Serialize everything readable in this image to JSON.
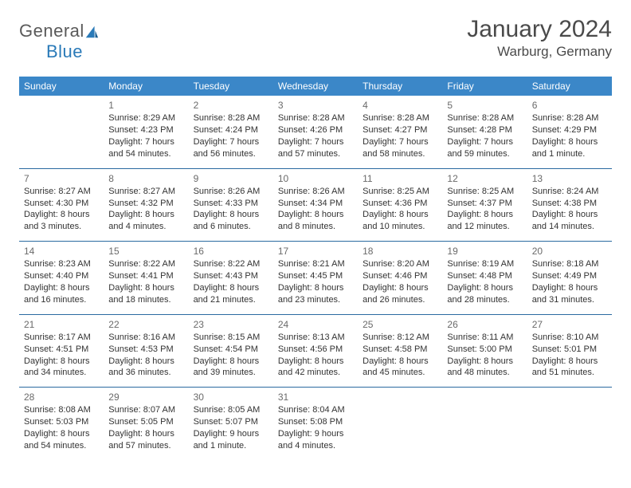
{
  "logo": {
    "text1": "General",
    "text2": "Blue"
  },
  "title": "January 2024",
  "location": "Warburg, Germany",
  "colors": {
    "header_bg": "#3b87c8",
    "header_text": "#ffffff",
    "row_border": "#2a6aa0",
    "daynum": "#6a6a6a",
    "body_text": "#333333"
  },
  "day_headers": [
    "Sunday",
    "Monday",
    "Tuesday",
    "Wednesday",
    "Thursday",
    "Friday",
    "Saturday"
  ],
  "weeks": [
    [
      null,
      {
        "n": "1",
        "sr": "Sunrise: 8:29 AM",
        "ss": "Sunset: 4:23 PM",
        "dl": "Daylight: 7 hours and 54 minutes."
      },
      {
        "n": "2",
        "sr": "Sunrise: 8:28 AM",
        "ss": "Sunset: 4:24 PM",
        "dl": "Daylight: 7 hours and 56 minutes."
      },
      {
        "n": "3",
        "sr": "Sunrise: 8:28 AM",
        "ss": "Sunset: 4:26 PM",
        "dl": "Daylight: 7 hours and 57 minutes."
      },
      {
        "n": "4",
        "sr": "Sunrise: 8:28 AM",
        "ss": "Sunset: 4:27 PM",
        "dl": "Daylight: 7 hours and 58 minutes."
      },
      {
        "n": "5",
        "sr": "Sunrise: 8:28 AM",
        "ss": "Sunset: 4:28 PM",
        "dl": "Daylight: 7 hours and 59 minutes."
      },
      {
        "n": "6",
        "sr": "Sunrise: 8:28 AM",
        "ss": "Sunset: 4:29 PM",
        "dl": "Daylight: 8 hours and 1 minute."
      }
    ],
    [
      {
        "n": "7",
        "sr": "Sunrise: 8:27 AM",
        "ss": "Sunset: 4:30 PM",
        "dl": "Daylight: 8 hours and 3 minutes."
      },
      {
        "n": "8",
        "sr": "Sunrise: 8:27 AM",
        "ss": "Sunset: 4:32 PM",
        "dl": "Daylight: 8 hours and 4 minutes."
      },
      {
        "n": "9",
        "sr": "Sunrise: 8:26 AM",
        "ss": "Sunset: 4:33 PM",
        "dl": "Daylight: 8 hours and 6 minutes."
      },
      {
        "n": "10",
        "sr": "Sunrise: 8:26 AM",
        "ss": "Sunset: 4:34 PM",
        "dl": "Daylight: 8 hours and 8 minutes."
      },
      {
        "n": "11",
        "sr": "Sunrise: 8:25 AM",
        "ss": "Sunset: 4:36 PM",
        "dl": "Daylight: 8 hours and 10 minutes."
      },
      {
        "n": "12",
        "sr": "Sunrise: 8:25 AM",
        "ss": "Sunset: 4:37 PM",
        "dl": "Daylight: 8 hours and 12 minutes."
      },
      {
        "n": "13",
        "sr": "Sunrise: 8:24 AM",
        "ss": "Sunset: 4:38 PM",
        "dl": "Daylight: 8 hours and 14 minutes."
      }
    ],
    [
      {
        "n": "14",
        "sr": "Sunrise: 8:23 AM",
        "ss": "Sunset: 4:40 PM",
        "dl": "Daylight: 8 hours and 16 minutes."
      },
      {
        "n": "15",
        "sr": "Sunrise: 8:22 AM",
        "ss": "Sunset: 4:41 PM",
        "dl": "Daylight: 8 hours and 18 minutes."
      },
      {
        "n": "16",
        "sr": "Sunrise: 8:22 AM",
        "ss": "Sunset: 4:43 PM",
        "dl": "Daylight: 8 hours and 21 minutes."
      },
      {
        "n": "17",
        "sr": "Sunrise: 8:21 AM",
        "ss": "Sunset: 4:45 PM",
        "dl": "Daylight: 8 hours and 23 minutes."
      },
      {
        "n": "18",
        "sr": "Sunrise: 8:20 AM",
        "ss": "Sunset: 4:46 PM",
        "dl": "Daylight: 8 hours and 26 minutes."
      },
      {
        "n": "19",
        "sr": "Sunrise: 8:19 AM",
        "ss": "Sunset: 4:48 PM",
        "dl": "Daylight: 8 hours and 28 minutes."
      },
      {
        "n": "20",
        "sr": "Sunrise: 8:18 AM",
        "ss": "Sunset: 4:49 PM",
        "dl": "Daylight: 8 hours and 31 minutes."
      }
    ],
    [
      {
        "n": "21",
        "sr": "Sunrise: 8:17 AM",
        "ss": "Sunset: 4:51 PM",
        "dl": "Daylight: 8 hours and 34 minutes."
      },
      {
        "n": "22",
        "sr": "Sunrise: 8:16 AM",
        "ss": "Sunset: 4:53 PM",
        "dl": "Daylight: 8 hours and 36 minutes."
      },
      {
        "n": "23",
        "sr": "Sunrise: 8:15 AM",
        "ss": "Sunset: 4:54 PM",
        "dl": "Daylight: 8 hours and 39 minutes."
      },
      {
        "n": "24",
        "sr": "Sunrise: 8:13 AM",
        "ss": "Sunset: 4:56 PM",
        "dl": "Daylight: 8 hours and 42 minutes."
      },
      {
        "n": "25",
        "sr": "Sunrise: 8:12 AM",
        "ss": "Sunset: 4:58 PM",
        "dl": "Daylight: 8 hours and 45 minutes."
      },
      {
        "n": "26",
        "sr": "Sunrise: 8:11 AM",
        "ss": "Sunset: 5:00 PM",
        "dl": "Daylight: 8 hours and 48 minutes."
      },
      {
        "n": "27",
        "sr": "Sunrise: 8:10 AM",
        "ss": "Sunset: 5:01 PM",
        "dl": "Daylight: 8 hours and 51 minutes."
      }
    ],
    [
      {
        "n": "28",
        "sr": "Sunrise: 8:08 AM",
        "ss": "Sunset: 5:03 PM",
        "dl": "Daylight: 8 hours and 54 minutes."
      },
      {
        "n": "29",
        "sr": "Sunrise: 8:07 AM",
        "ss": "Sunset: 5:05 PM",
        "dl": "Daylight: 8 hours and 57 minutes."
      },
      {
        "n": "30",
        "sr": "Sunrise: 8:05 AM",
        "ss": "Sunset: 5:07 PM",
        "dl": "Daylight: 9 hours and 1 minute."
      },
      {
        "n": "31",
        "sr": "Sunrise: 8:04 AM",
        "ss": "Sunset: 5:08 PM",
        "dl": "Daylight: 9 hours and 4 minutes."
      },
      null,
      null,
      null
    ]
  ]
}
